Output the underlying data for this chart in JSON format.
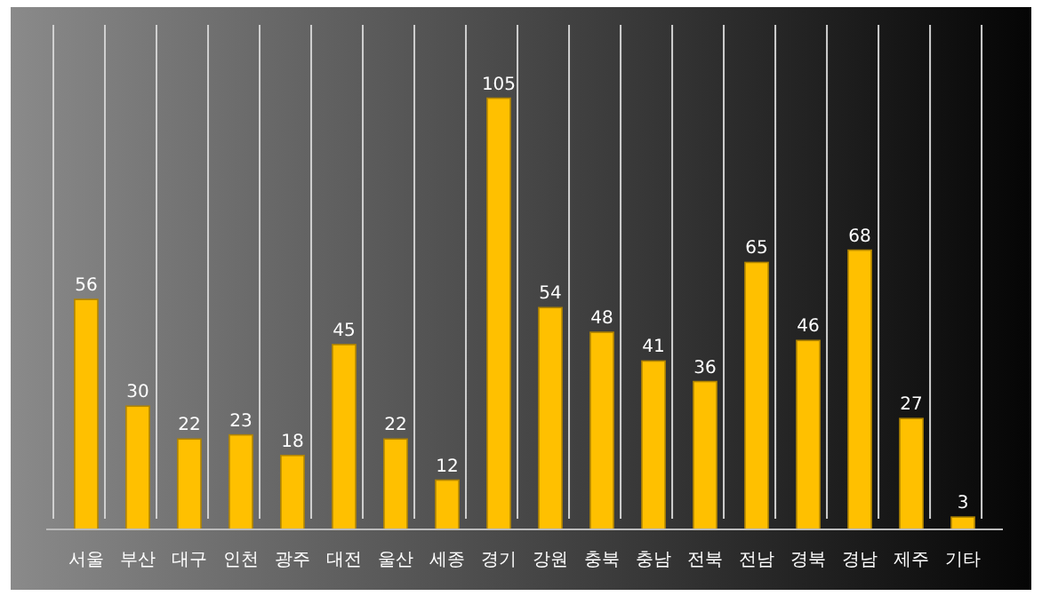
{
  "chart_data": {
    "type": "bar",
    "categories": [
      "서울",
      "부산",
      "대구",
      "인천",
      "광주",
      "대전",
      "울산",
      "세종",
      "경기",
      "강원",
      "충북",
      "충남",
      "전북",
      "전남",
      "경북",
      "경남",
      "제주",
      "기타"
    ],
    "values": [
      56,
      30,
      22,
      23,
      18,
      45,
      22,
      12,
      105,
      54,
      48,
      41,
      36,
      65,
      46,
      68,
      27,
      3
    ],
    "color": "#ffc000",
    "data_labels": true,
    "grid": "x"
  }
}
